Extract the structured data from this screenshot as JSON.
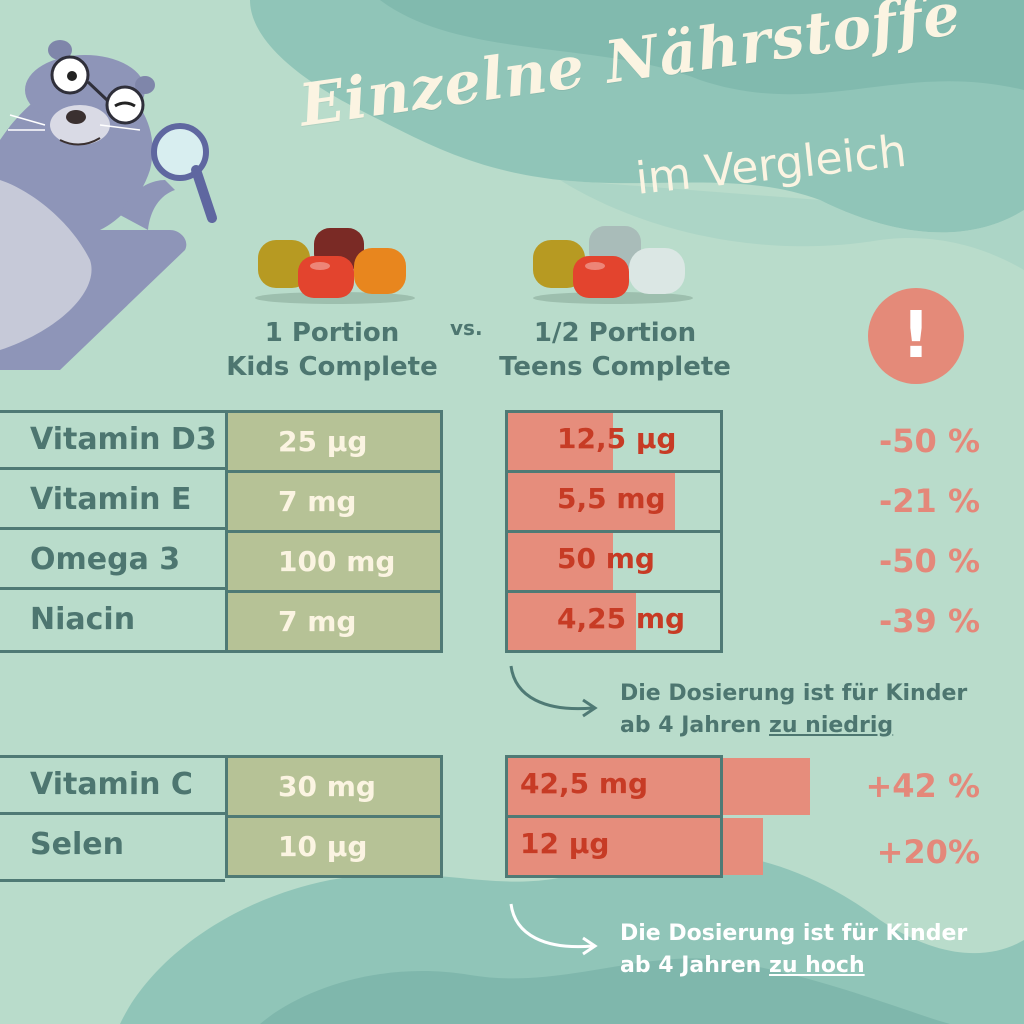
{
  "title": "Einzelne Nährstoffe",
  "subtitle": "im Vergleich",
  "columns": {
    "left": {
      "line1": "1 Portion",
      "line2": "Kids Complete"
    },
    "vs": "vs.",
    "right": {
      "line1": "1/2 Portion",
      "line2": "Teens Complete"
    }
  },
  "alert_symbol": "!",
  "group1": [
    {
      "name": "Vitamin D3",
      "kids": "25 µg",
      "teens": "12,5 µg",
      "change": "-50 %",
      "teens_fill_pct": 50
    },
    {
      "name": "Vitamin E",
      "kids": "7 mg",
      "teens": "5,5 mg",
      "change": "-21 %",
      "teens_fill_pct": 79
    },
    {
      "name": "Omega 3",
      "kids": "100 mg",
      "teens": "50 mg",
      "change": "-50 %",
      "teens_fill_pct": 50
    },
    {
      "name": "Niacin",
      "kids": "7 mg",
      "teens": "4,25 mg",
      "change": "-39 %",
      "teens_fill_pct": 61
    }
  ],
  "note1": {
    "text": "Die Dosierung ist für Kinder ab 4 Jahren",
    "emph": "zu niedrig"
  },
  "group2": [
    {
      "name": "Vitamin C",
      "kids": "30 mg",
      "teens": "42,5 mg",
      "change": "+42 %",
      "teens_fill_pct": 142
    },
    {
      "name": "Selen",
      "kids": "10 µg",
      "teens": "12 µg",
      "change": "+20%",
      "teens_fill_pct": 120
    }
  ],
  "note2": {
    "text": "Die Dosierung ist für Kinder ab 4 Jahren",
    "emph": "zu hoch"
  },
  "colors": {
    "background": "#b9dccb",
    "outline": "#4f7a75",
    "kids_cell": "#b6c296",
    "teens_fill": "#e68d7c",
    "accent_red": "#c73b25",
    "pct": "#e4887a"
  }
}
